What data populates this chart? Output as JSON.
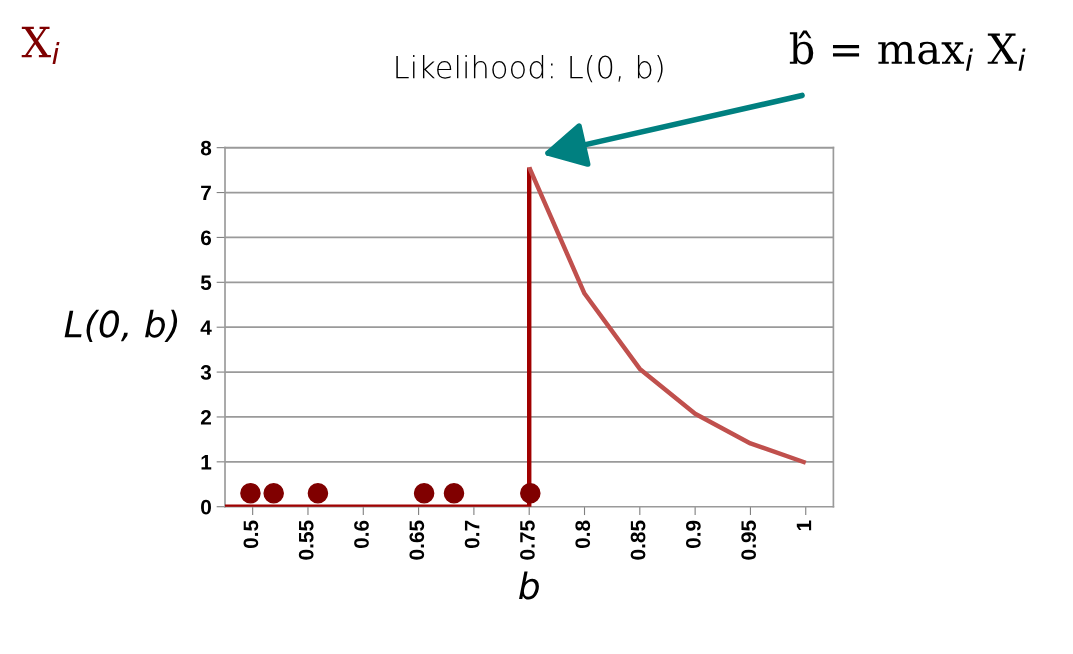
{
  "chart_data": {
    "type": "line",
    "title": "Likelihood: L(0, b)",
    "xlabel": "b",
    "ylabel": "L(0, b)",
    "xlim": [
      0.475,
      1.025
    ],
    "xticks": [
      0.5,
      0.55,
      0.6,
      0.65,
      0.7,
      0.75,
      0.8,
      0.85,
      0.9,
      0.95,
      1
    ],
    "ylim": [
      0,
      8
    ],
    "yticks": [
      0,
      1,
      2,
      3,
      4,
      5,
      6,
      7,
      8
    ],
    "grid": "y",
    "marker": "none",
    "line_style": "solid",
    "series": [
      {
        "color": "#a00000",
        "x": [
          0.475,
          0.75,
          0.75
        ],
        "values": [
          0,
          0,
          7.56
        ]
      },
      {
        "color": "#c0504d",
        "x": [
          0.75,
          0.8,
          0.85,
          0.9,
          0.95,
          1
        ],
        "values": [
          7.56,
          4.75,
          3.07,
          2.07,
          1.41,
          0.98
        ]
      },
      {
        "type": "scatter",
        "marker": "circle",
        "color": "#800000",
        "x": [
          0.498,
          0.519,
          0.559,
          0.655,
          0.682,
          0.751
        ],
        "values": [
          0.3,
          0.3,
          0.3,
          0.3,
          0.3,
          0.3
        ]
      }
    ],
    "annotations": [
      "b̂ = max$_{i}$ X$_{i}$",
      "X$_{i}$"
    ]
  }
}
